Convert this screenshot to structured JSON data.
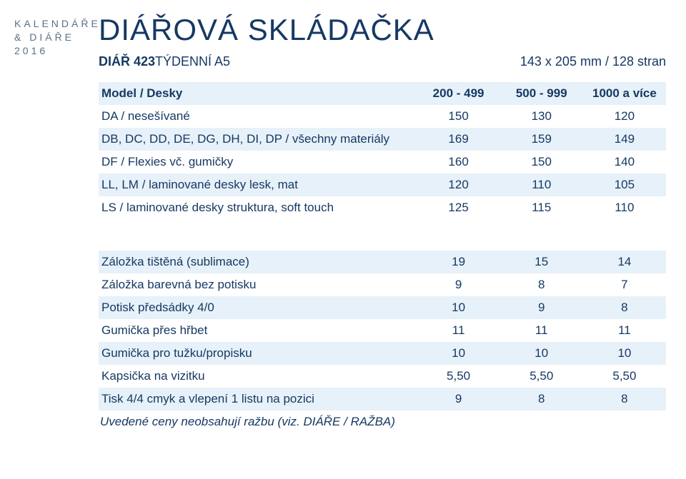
{
  "side": {
    "line1": "KALENDÁŘE",
    "line2": "& DIÁŘE",
    "line3": "2016"
  },
  "title": "DIÁŘOVÁ SKLÁDAČKA",
  "subtitle": {
    "strong": "DIÁŘ 423",
    "light": " TÝDENNÍ A5",
    "dims": "143 x 205 mm / 128 stran"
  },
  "colors": {
    "zebra": "#e7f1f9",
    "text": "#163963",
    "side": "#5c6f87",
    "bg": "#ffffff"
  },
  "table1": {
    "head": {
      "label": "Model / Desky",
      "c1": "200 - 499",
      "c2": "500 - 999",
      "c3": "1000 a více"
    },
    "rows": [
      {
        "label": "DA / nesešívané",
        "c1": "150",
        "c2": "130",
        "c3": "120"
      },
      {
        "label": "DB, DC, DD, DE, DG, DH, DI, DP / všechny materiály",
        "c1": "169",
        "c2": "159",
        "c3": "149"
      },
      {
        "label": "DF / Flexies vč. gumičky",
        "c1": "160",
        "c2": "150",
        "c3": "140"
      },
      {
        "label": "LL, LM / laminované desky lesk, mat",
        "c1": "120",
        "c2": "110",
        "c3": "105"
      },
      {
        "label": "LS / laminované desky struktura, soft touch",
        "c1": "125",
        "c2": "115",
        "c3": "110"
      }
    ]
  },
  "table2": {
    "rows": [
      {
        "label": "Záložka tištěná (sublimace)",
        "c1": "19",
        "c2": "15",
        "c3": "14"
      },
      {
        "label": "Záložka barevná bez potisku",
        "c1": "9",
        "c2": "8",
        "c3": "7"
      },
      {
        "label": "Potisk předsádky 4/0",
        "c1": "10",
        "c2": "9",
        "c3": "8"
      },
      {
        "label": "Gumička přes hřbet",
        "c1": "11",
        "c2": "11",
        "c3": "11"
      },
      {
        "label": "Gumička pro tužku/propisku",
        "c1": "10",
        "c2": "10",
        "c3": "10"
      },
      {
        "label": "Kapsička na vizitku",
        "c1": "5,50",
        "c2": "5,50",
        "c3": "5,50"
      },
      {
        "label": "Tisk 4/4 cmyk a vlepení 1 listu na pozici",
        "c1": "9",
        "c2": "8",
        "c3": "8"
      }
    ]
  },
  "footnote": "Uvedené ceny neobsahují ražbu (viz. DIÁŘE / RAŽBA)"
}
